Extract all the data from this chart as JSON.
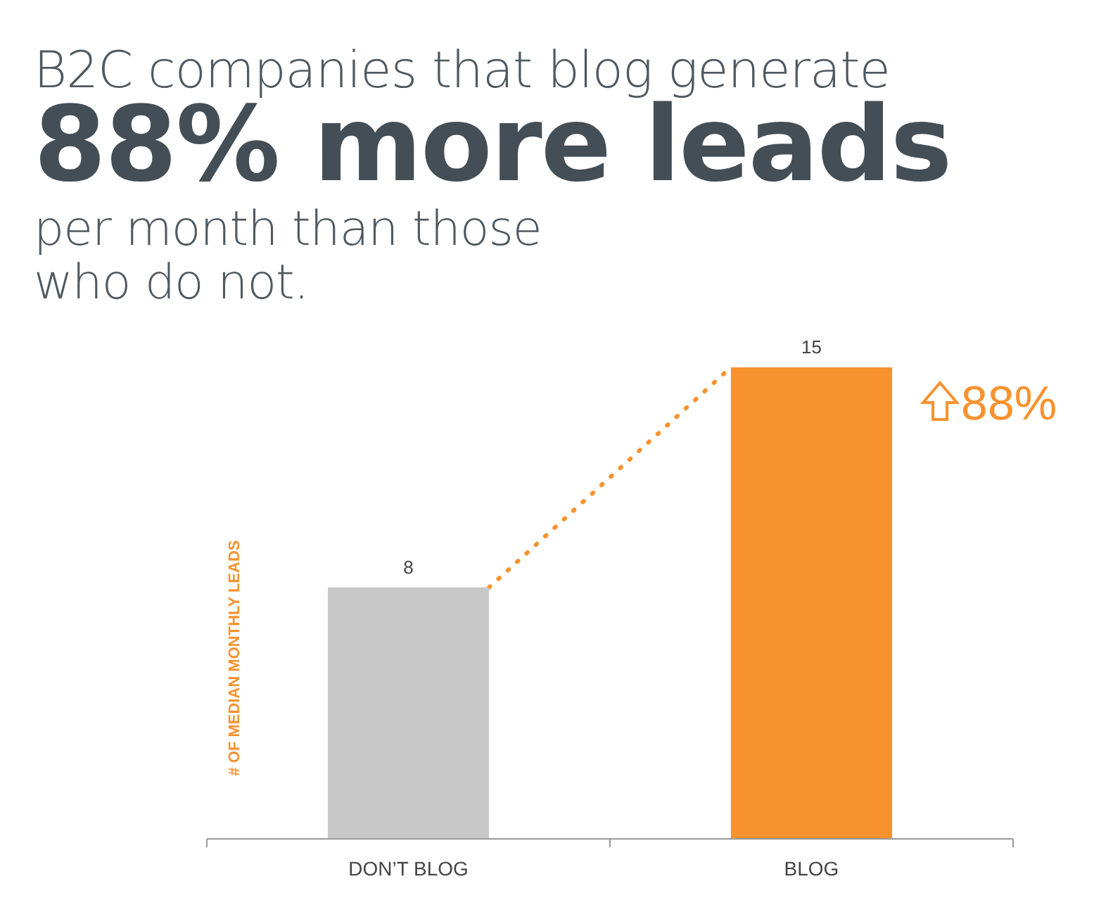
{
  "chart_data": {
    "type": "bar",
    "title": "B2C companies that blog generate\n88% more leads\nper month than those\nwho do not.",
    "categories": [
      "DON’T BLOG",
      "BLOG"
    ],
    "values": [
      8,
      15
    ],
    "colors": [
      "#c8c8c8",
      "#f7922e"
    ],
    "tick_labels": "x",
    "data_labels": true,
    "ylabel": "# OF MEDIAN MONTHLY LEADS",
    "annotations": [
      "88%"
    ]
  }
}
